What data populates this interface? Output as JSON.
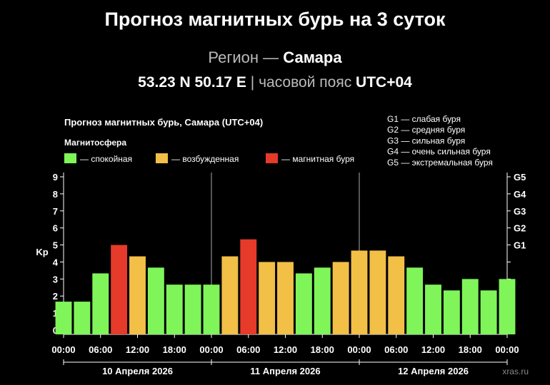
{
  "page": {
    "title": "Прогноз магнитных бурь на 3 суток",
    "region_label": "Регион —",
    "region_name": "Самара",
    "coords": "53.23 N 50.17 E",
    "tz_label": "| часовой пояс",
    "tz": "UTC+04",
    "watermark": "xras.ru"
  },
  "chart_data": {
    "type": "bar",
    "title": "Прогноз магнитных бурь, Самара (UTC+04)",
    "legend_title": "Магнитосфера",
    "legend": [
      {
        "label": "— спокойная",
        "color": "#7ff55a"
      },
      {
        "label": "— возбужденная",
        "color": "#f2bf47"
      },
      {
        "label": "— магнитная буря",
        "color": "#e63a2a"
      }
    ],
    "storm_scale": [
      "G1 — слабая буря",
      "G2 — средняя буря",
      "G3 — сильная буря",
      "G4 — очень сильная буря",
      "G5 — экстремальная буря"
    ],
    "ylabel": "Kp",
    "ylim": [
      0,
      9
    ],
    "yticks": [
      0,
      1,
      2,
      3,
      4,
      5,
      6,
      7,
      8,
      9
    ],
    "g_ticks": [
      {
        "kp": 5,
        "label": "G1"
      },
      {
        "kp": 6,
        "label": "G2"
      },
      {
        "kp": 7,
        "label": "G3"
      },
      {
        "kp": 8,
        "label": "G4"
      },
      {
        "kp": 9,
        "label": "G5"
      }
    ],
    "xtick_labels": [
      "00:00",
      "06:00",
      "12:00",
      "18:00",
      "00:00",
      "06:00",
      "12:00",
      "18:00",
      "00:00",
      "06:00",
      "12:00",
      "18:00",
      "00:00"
    ],
    "days": [
      "10 Апреля 2026",
      "11 Апреля 2026",
      "12 Апреля 2026"
    ],
    "values": [
      1.67,
      1.67,
      3.33,
      5.0,
      4.33,
      3.67,
      2.67,
      2.67,
      2.67,
      4.33,
      5.33,
      4.0,
      4.0,
      3.33,
      3.67,
      4.0,
      4.67,
      4.67,
      4.33,
      3.67,
      2.67,
      2.33,
      3.0,
      2.33,
      3.0
    ],
    "colors": {
      "quiet": "#7ff55a",
      "active": "#f2bf47",
      "storm": "#e63a2a"
    }
  }
}
